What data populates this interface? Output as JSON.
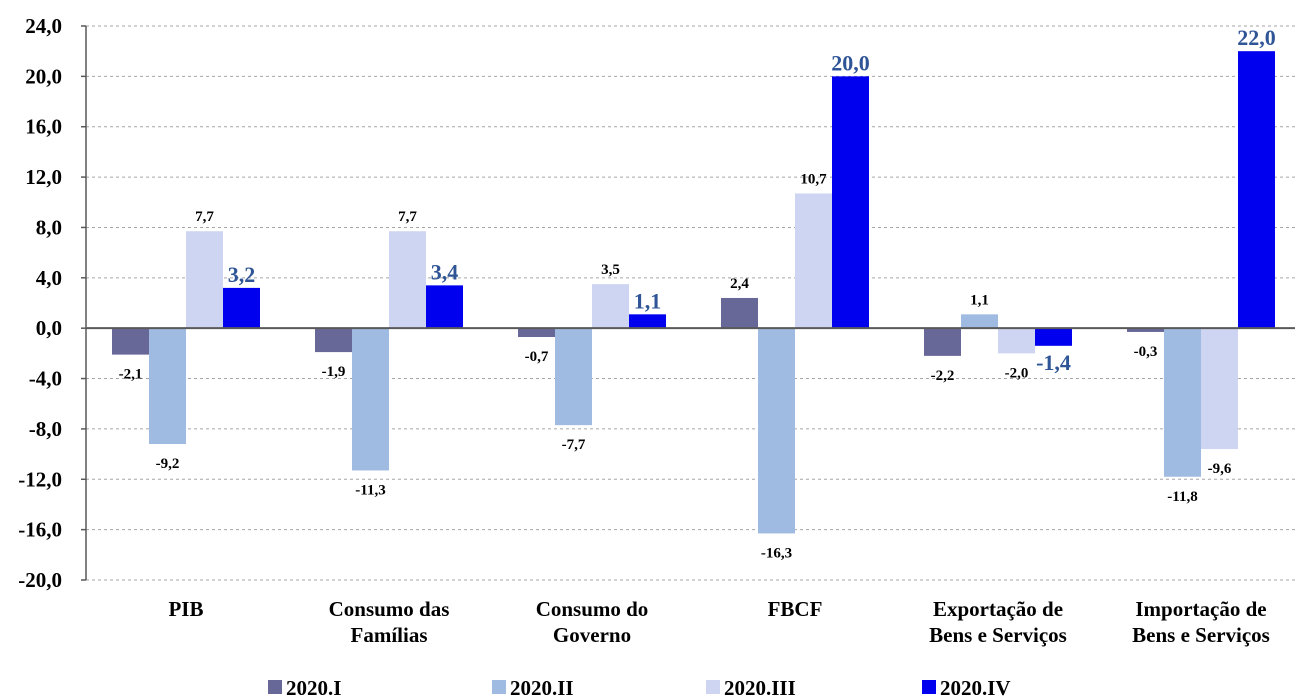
{
  "chart_data": {
    "type": "bar",
    "categories": [
      [
        "PIB"
      ],
      [
        "Consumo das",
        "Famílias"
      ],
      [
        "Consumo do",
        "Governo"
      ],
      [
        "FBCF"
      ],
      [
        "Exportação de",
        "Bens e Serviços"
      ],
      [
        "Importação de",
        "Bens e Serviços"
      ]
    ],
    "series": [
      {
        "name": "2020.I",
        "color": "#686898",
        "values": [
          -2.1,
          -1.9,
          -0.7,
          2.4,
          -2.2,
          -0.3
        ],
        "labels": [
          "-2,1",
          "-1,9",
          "-0,7",
          "2,4",
          "-2,2",
          "-0,3"
        ]
      },
      {
        "name": "2020.II",
        "color": "#A0BBE2",
        "values": [
          -9.2,
          -11.3,
          -7.7,
          -16.3,
          1.1,
          -11.8
        ],
        "labels": [
          "-9,2",
          "-11,3",
          "-7,7",
          "-16,3",
          "1,1",
          "-11,8"
        ]
      },
      {
        "name": "2020.III",
        "color": "#CED5F2",
        "values": [
          7.7,
          7.7,
          3.5,
          10.7,
          -2.0,
          -9.6
        ],
        "labels": [
          "7,7",
          "7,7",
          "3,5",
          "10,7",
          "-2,0",
          "-9,6"
        ]
      },
      {
        "name": "2020.IV",
        "color": "#0000EE",
        "values": [
          3.2,
          3.4,
          1.1,
          20.0,
          -1.4,
          22.0
        ],
        "labels": [
          "3,2",
          "3,4",
          "1,1",
          "20,0",
          "-1,4",
          "22,0"
        ]
      }
    ],
    "ylim": [
      -20,
      24
    ],
    "yticks": [
      24,
      20,
      16,
      12,
      8,
      4,
      0,
      -4,
      -8,
      -12,
      -16,
      -20
    ],
    "ytick_labels": [
      "24,0",
      "20,0",
      "16,0",
      "12,0",
      "8,0",
      "4,0",
      "0,0",
      "-4,0",
      "-8,0",
      "-12,0",
      "-16,0",
      "-20,0"
    ],
    "grid": true,
    "legend_position": "bottom",
    "title": "",
    "xlabel": "",
    "ylabel": ""
  }
}
